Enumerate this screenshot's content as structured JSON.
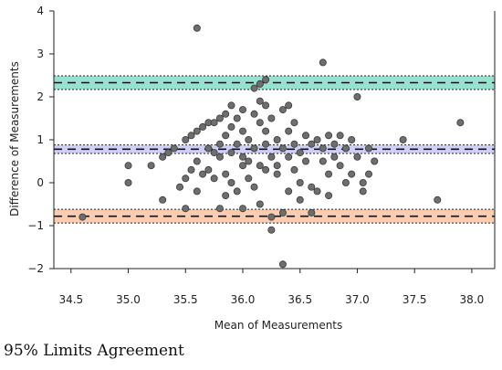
{
  "caption": "95% Limits Agreement",
  "chart_data": {
    "type": "scatter",
    "title": "",
    "xlabel": "Mean of Measurements",
    "ylabel": "Difference of Measurements",
    "xlim": [
      34.35,
      38.2
    ],
    "ylim": [
      -2.0,
      4.0
    ],
    "x_ticks": [
      34.5,
      35.0,
      35.5,
      36.0,
      36.5,
      37.0,
      37.5,
      38.0
    ],
    "x_tick_labels": [
      "34.5",
      "35.0",
      "35.5",
      "36.0",
      "36.5",
      "37.0",
      "37.5",
      "38.0"
    ],
    "y_ticks": [
      -2,
      -1,
      0,
      1,
      2,
      3,
      4
    ],
    "y_tick_labels": [
      "−2",
      "−1",
      "0",
      "1",
      "2",
      "3",
      "4"
    ],
    "grid": false,
    "bands": [
      {
        "kind": "upper-limit",
        "mean": 2.33,
        "low": 2.17,
        "high": 2.49,
        "color": "#3fc8a8"
      },
      {
        "kind": "mean-bias",
        "mean": 0.78,
        "low": 0.68,
        "high": 0.88,
        "color": "#a8a8f0"
      },
      {
        "kind": "lower-limit",
        "mean": -0.78,
        "low": -0.94,
        "high": -0.62,
        "color": "#f7a270"
      }
    ],
    "marker_color": "#6e6e6e",
    "points": [
      {
        "x": 34.6,
        "y": -0.8
      },
      {
        "x": 35.0,
        "y": 0.4
      },
      {
        "x": 35.0,
        "y": 0.0
      },
      {
        "x": 35.2,
        "y": 0.4
      },
      {
        "x": 35.3,
        "y": 0.6
      },
      {
        "x": 35.3,
        "y": -0.4
      },
      {
        "x": 35.35,
        "y": 0.7
      },
      {
        "x": 35.4,
        "y": 0.8
      },
      {
        "x": 35.45,
        "y": -0.1
      },
      {
        "x": 35.5,
        "y": 1.0
      },
      {
        "x": 35.5,
        "y": 0.1
      },
      {
        "x": 35.5,
        "y": -0.6
      },
      {
        "x": 35.55,
        "y": 1.1
      },
      {
        "x": 35.55,
        "y": 0.3
      },
      {
        "x": 35.6,
        "y": 3.6
      },
      {
        "x": 35.6,
        "y": 1.2
      },
      {
        "x": 35.6,
        "y": 0.5
      },
      {
        "x": 35.6,
        "y": -0.2
      },
      {
        "x": 35.65,
        "y": 1.3
      },
      {
        "x": 35.65,
        "y": 0.2
      },
      {
        "x": 35.7,
        "y": 1.4
      },
      {
        "x": 35.7,
        "y": 0.8
      },
      {
        "x": 35.7,
        "y": 0.3
      },
      {
        "x": 35.75,
        "y": 1.4
      },
      {
        "x": 35.75,
        "y": 0.7
      },
      {
        "x": 35.75,
        "y": 0.1
      },
      {
        "x": 35.8,
        "y": 1.5
      },
      {
        "x": 35.8,
        "y": 0.9
      },
      {
        "x": 35.8,
        "y": 0.6
      },
      {
        "x": 35.8,
        "y": -0.6
      },
      {
        "x": 35.85,
        "y": 1.6
      },
      {
        "x": 35.85,
        "y": 1.1
      },
      {
        "x": 35.85,
        "y": 0.2
      },
      {
        "x": 35.85,
        "y": -0.3
      },
      {
        "x": 35.9,
        "y": 1.8
      },
      {
        "x": 35.9,
        "y": 1.3
      },
      {
        "x": 35.9,
        "y": 0.7
      },
      {
        "x": 35.9,
        "y": 0.0
      },
      {
        "x": 35.95,
        "y": 1.5
      },
      {
        "x": 35.95,
        "y": 0.9
      },
      {
        "x": 35.95,
        "y": -0.2
      },
      {
        "x": 36.0,
        "y": 1.7
      },
      {
        "x": 36.0,
        "y": 1.2
      },
      {
        "x": 36.0,
        "y": 0.6
      },
      {
        "x": 36.0,
        "y": 0.4
      },
      {
        "x": 36.0,
        "y": -0.6
      },
      {
        "x": 36.05,
        "y": 1.0
      },
      {
        "x": 36.05,
        "y": 0.5
      },
      {
        "x": 36.05,
        "y": 0.1
      },
      {
        "x": 36.1,
        "y": 2.2
      },
      {
        "x": 36.1,
        "y": 1.6
      },
      {
        "x": 36.1,
        "y": 0.8
      },
      {
        "x": 36.1,
        "y": -0.1
      },
      {
        "x": 36.15,
        "y": 2.3
      },
      {
        "x": 36.15,
        "y": 1.9
      },
      {
        "x": 36.15,
        "y": 1.4
      },
      {
        "x": 36.15,
        "y": 0.4
      },
      {
        "x": 36.15,
        "y": -0.5
      },
      {
        "x": 36.2,
        "y": 2.4
      },
      {
        "x": 36.2,
        "y": 1.8
      },
      {
        "x": 36.2,
        "y": 1.2
      },
      {
        "x": 36.2,
        "y": 0.9
      },
      {
        "x": 36.2,
        "y": 0.3
      },
      {
        "x": 36.25,
        "y": 1.5
      },
      {
        "x": 36.25,
        "y": 0.6
      },
      {
        "x": 36.25,
        "y": -1.1
      },
      {
        "x": 36.25,
        "y": -0.8
      },
      {
        "x": 36.3,
        "y": 1.0
      },
      {
        "x": 36.3,
        "y": 0.4
      },
      {
        "x": 36.3,
        "y": 0.2
      },
      {
        "x": 36.35,
        "y": 1.7
      },
      {
        "x": 36.35,
        "y": 0.8
      },
      {
        "x": 36.35,
        "y": -1.9
      },
      {
        "x": 36.35,
        "y": -0.7
      },
      {
        "x": 36.4,
        "y": 1.8
      },
      {
        "x": 36.4,
        "y": 1.2
      },
      {
        "x": 36.4,
        "y": 0.6
      },
      {
        "x": 36.4,
        "y": -0.2
      },
      {
        "x": 36.45,
        "y": 1.4
      },
      {
        "x": 36.45,
        "y": 0.9
      },
      {
        "x": 36.45,
        "y": 0.3
      },
      {
        "x": 36.5,
        "y": 0.7
      },
      {
        "x": 36.5,
        "y": 0.0
      },
      {
        "x": 36.5,
        "y": -0.4
      },
      {
        "x": 36.55,
        "y": 1.1
      },
      {
        "x": 36.55,
        "y": 0.5
      },
      {
        "x": 36.6,
        "y": 0.9
      },
      {
        "x": 36.6,
        "y": -0.1
      },
      {
        "x": 36.6,
        "y": -0.7
      },
      {
        "x": 36.65,
        "y": 1.0
      },
      {
        "x": 36.65,
        "y": -0.2
      },
      {
        "x": 36.7,
        "y": 2.8
      },
      {
        "x": 36.7,
        "y": 0.8
      },
      {
        "x": 36.7,
        "y": 0.5
      },
      {
        "x": 36.75,
        "y": 1.1
      },
      {
        "x": 36.75,
        "y": 0.2
      },
      {
        "x": 36.75,
        "y": -0.3
      },
      {
        "x": 36.8,
        "y": 0.9
      },
      {
        "x": 36.8,
        "y": 0.6
      },
      {
        "x": 36.85,
        "y": 1.1
      },
      {
        "x": 36.85,
        "y": 0.4
      },
      {
        "x": 36.9,
        "y": 0.0
      },
      {
        "x": 36.9,
        "y": 0.8
      },
      {
        "x": 36.95,
        "y": 1.0
      },
      {
        "x": 36.95,
        "y": 0.2
      },
      {
        "x": 37.0,
        "y": 2.0
      },
      {
        "x": 37.0,
        "y": 0.6
      },
      {
        "x": 37.05,
        "y": 0.0
      },
      {
        "x": 37.05,
        "y": -0.2
      },
      {
        "x": 37.1,
        "y": 0.8
      },
      {
        "x": 37.1,
        "y": 0.2
      },
      {
        "x": 37.15,
        "y": 0.5
      },
      {
        "x": 37.4,
        "y": 1.0
      },
      {
        "x": 37.7,
        "y": -0.4
      },
      {
        "x": 37.9,
        "y": 1.4
      }
    ]
  }
}
